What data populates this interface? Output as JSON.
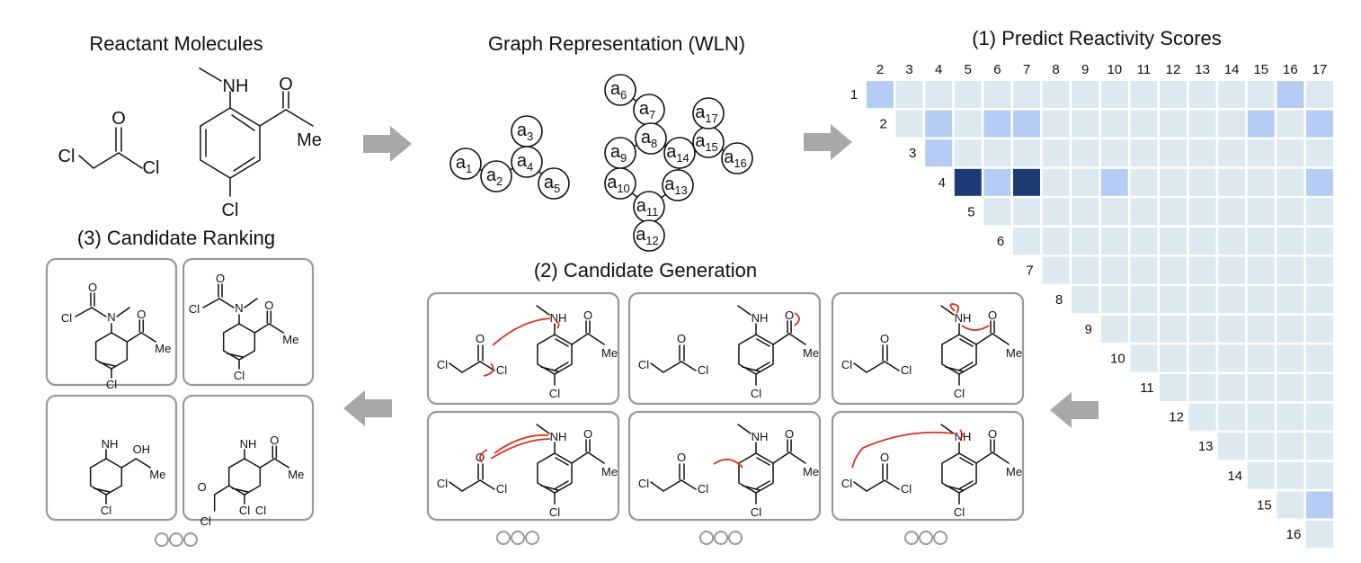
{
  "reactants": {
    "title": "Reactant Molecules",
    "labels": [
      "Cl",
      "O",
      "Cl",
      "NH",
      "O",
      "Me",
      "Cl"
    ]
  },
  "graph": {
    "title": "Graph Representation (WLN)",
    "nodes": [
      {
        "id": 1,
        "base": "a",
        "sub": "1"
      },
      {
        "id": 2,
        "base": "a",
        "sub": "2"
      },
      {
        "id": 3,
        "base": "a",
        "sub": "3"
      },
      {
        "id": 4,
        "base": "a",
        "sub": "4"
      },
      {
        "id": 5,
        "base": "a",
        "sub": "5"
      },
      {
        "id": 6,
        "base": "a",
        "sub": "6"
      },
      {
        "id": 7,
        "base": "a",
        "sub": "7"
      },
      {
        "id": 8,
        "base": "a",
        "sub": "8"
      },
      {
        "id": 9,
        "base": "a",
        "sub": "9"
      },
      {
        "id": 10,
        "base": "a",
        "sub": "10"
      },
      {
        "id": 11,
        "base": "a",
        "sub": "11"
      },
      {
        "id": 12,
        "base": "a",
        "sub": "12"
      },
      {
        "id": 13,
        "base": "a",
        "sub": "13"
      },
      {
        "id": 14,
        "base": "a",
        "sub": "14"
      },
      {
        "id": 15,
        "base": "a",
        "sub": "15"
      },
      {
        "id": 16,
        "base": "a",
        "sub": "16"
      },
      {
        "id": 17,
        "base": "a",
        "sub": "17"
      }
    ]
  },
  "scores": {
    "title": "(1) Predict Reactivity Scores",
    "col_labels": [
      "2",
      "3",
      "4",
      "5",
      "6",
      "7",
      "8",
      "9",
      "10",
      "11",
      "12",
      "13",
      "14",
      "15",
      "16",
      "17"
    ],
    "row_labels": [
      "1",
      "2",
      "3",
      "4",
      "5",
      "6",
      "7",
      "8",
      "9",
      "10",
      "11",
      "12",
      "13",
      "14",
      "15",
      "16"
    ],
    "colors": {
      "none": "#dce9f1",
      "medium": "#b5cdf5",
      "high": "#1d3c75"
    },
    "cells": [
      {
        "row": 1,
        "col": 2,
        "level": "medium"
      },
      {
        "row": 1,
        "col": 16,
        "level": "medium"
      },
      {
        "row": 2,
        "col": 4,
        "level": "medium"
      },
      {
        "row": 2,
        "col": 6,
        "level": "medium"
      },
      {
        "row": 2,
        "col": 7,
        "level": "medium"
      },
      {
        "row": 2,
        "col": 15,
        "level": "medium"
      },
      {
        "row": 2,
        "col": 17,
        "level": "medium"
      },
      {
        "row": 3,
        "col": 4,
        "level": "medium"
      },
      {
        "row": 4,
        "col": 5,
        "level": "high"
      },
      {
        "row": 4,
        "col": 6,
        "level": "medium"
      },
      {
        "row": 4,
        "col": 7,
        "level": "high"
      },
      {
        "row": 4,
        "col": 10,
        "level": "medium"
      },
      {
        "row": 4,
        "col": 17,
        "level": "medium"
      },
      {
        "row": 15,
        "col": 17,
        "level": "medium"
      }
    ]
  },
  "generation": {
    "title": "(2) Candidate Generation",
    "labels": [
      "Cl",
      "O",
      "Cl",
      "NH",
      "O",
      "Me",
      "Cl"
    ]
  },
  "ranking": {
    "title": "(3) Candidate Ranking",
    "labels": {
      "cl": "Cl",
      "o": "O",
      "n": "N",
      "nh": "NH",
      "oh": "OH",
      "me": "Me"
    }
  }
}
